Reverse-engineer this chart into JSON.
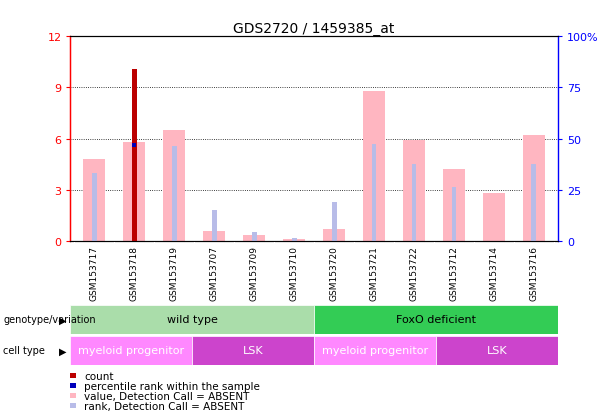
{
  "title": "GDS2720 / 1459385_at",
  "samples": [
    "GSM153717",
    "GSM153718",
    "GSM153719",
    "GSM153707",
    "GSM153709",
    "GSM153710",
    "GSM153720",
    "GSM153721",
    "GSM153722",
    "GSM153712",
    "GSM153714",
    "GSM153716"
  ],
  "pink_bar_heights": [
    4.8,
    5.8,
    6.5,
    0.6,
    0.35,
    0.1,
    0.7,
    8.8,
    5.9,
    4.2,
    2.8,
    6.2
  ],
  "blue_bar_heights": [
    4.0,
    5.8,
    5.6,
    1.8,
    0.55,
    0.2,
    2.3,
    5.7,
    4.5,
    3.2,
    0.0,
    4.5
  ],
  "red_bar_heights": [
    0.0,
    10.1,
    0.0,
    0.0,
    0.0,
    0.0,
    0.0,
    0.0,
    0.0,
    0.0,
    0.0,
    0.0
  ],
  "dark_blue_bar_heights": [
    0.0,
    5.75,
    0.0,
    0.0,
    0.0,
    0.0,
    0.0,
    0.0,
    0.0,
    0.0,
    0.0,
    0.0
  ],
  "ylim": [
    0,
    12
  ],
  "yticks_left": [
    0,
    3,
    6,
    9,
    12
  ],
  "yticks_right": [
    0,
    25,
    50,
    75,
    100
  ],
  "genotype_groups": [
    {
      "label": "wild type",
      "start": 0,
      "end": 6,
      "color": "#aaddaa"
    },
    {
      "label": "FoxO deficient",
      "start": 6,
      "end": 12,
      "color": "#33cc55"
    }
  ],
  "celltype_groups": [
    {
      "label": "myeloid progenitor",
      "start": 0,
      "end": 3,
      "color": "#ff88ff"
    },
    {
      "label": "LSK",
      "start": 3,
      "end": 6,
      "color": "#cc44cc"
    },
    {
      "label": "myeloid progenitor",
      "start": 6,
      "end": 9,
      "color": "#ff88ff"
    },
    {
      "label": "LSK",
      "start": 9,
      "end": 12,
      "color": "#cc44cc"
    }
  ],
  "legend_items": [
    {
      "label": "count",
      "color": "#bb0000"
    },
    {
      "label": "percentile rank within the sample",
      "color": "#0000bb"
    },
    {
      "label": "value, Detection Call = ABSENT",
      "color": "#ffb6c1"
    },
    {
      "label": "rank, Detection Call = ABSENT",
      "color": "#b8bce8"
    }
  ],
  "pink_color": "#ffb6c1",
  "blue_color": "#b8bce8",
  "red_color": "#bb0000",
  "dark_blue_color": "#0000bb",
  "grid_values": [
    3,
    6,
    9
  ],
  "bar_width": 0.55,
  "thin_bar_width": 0.12
}
